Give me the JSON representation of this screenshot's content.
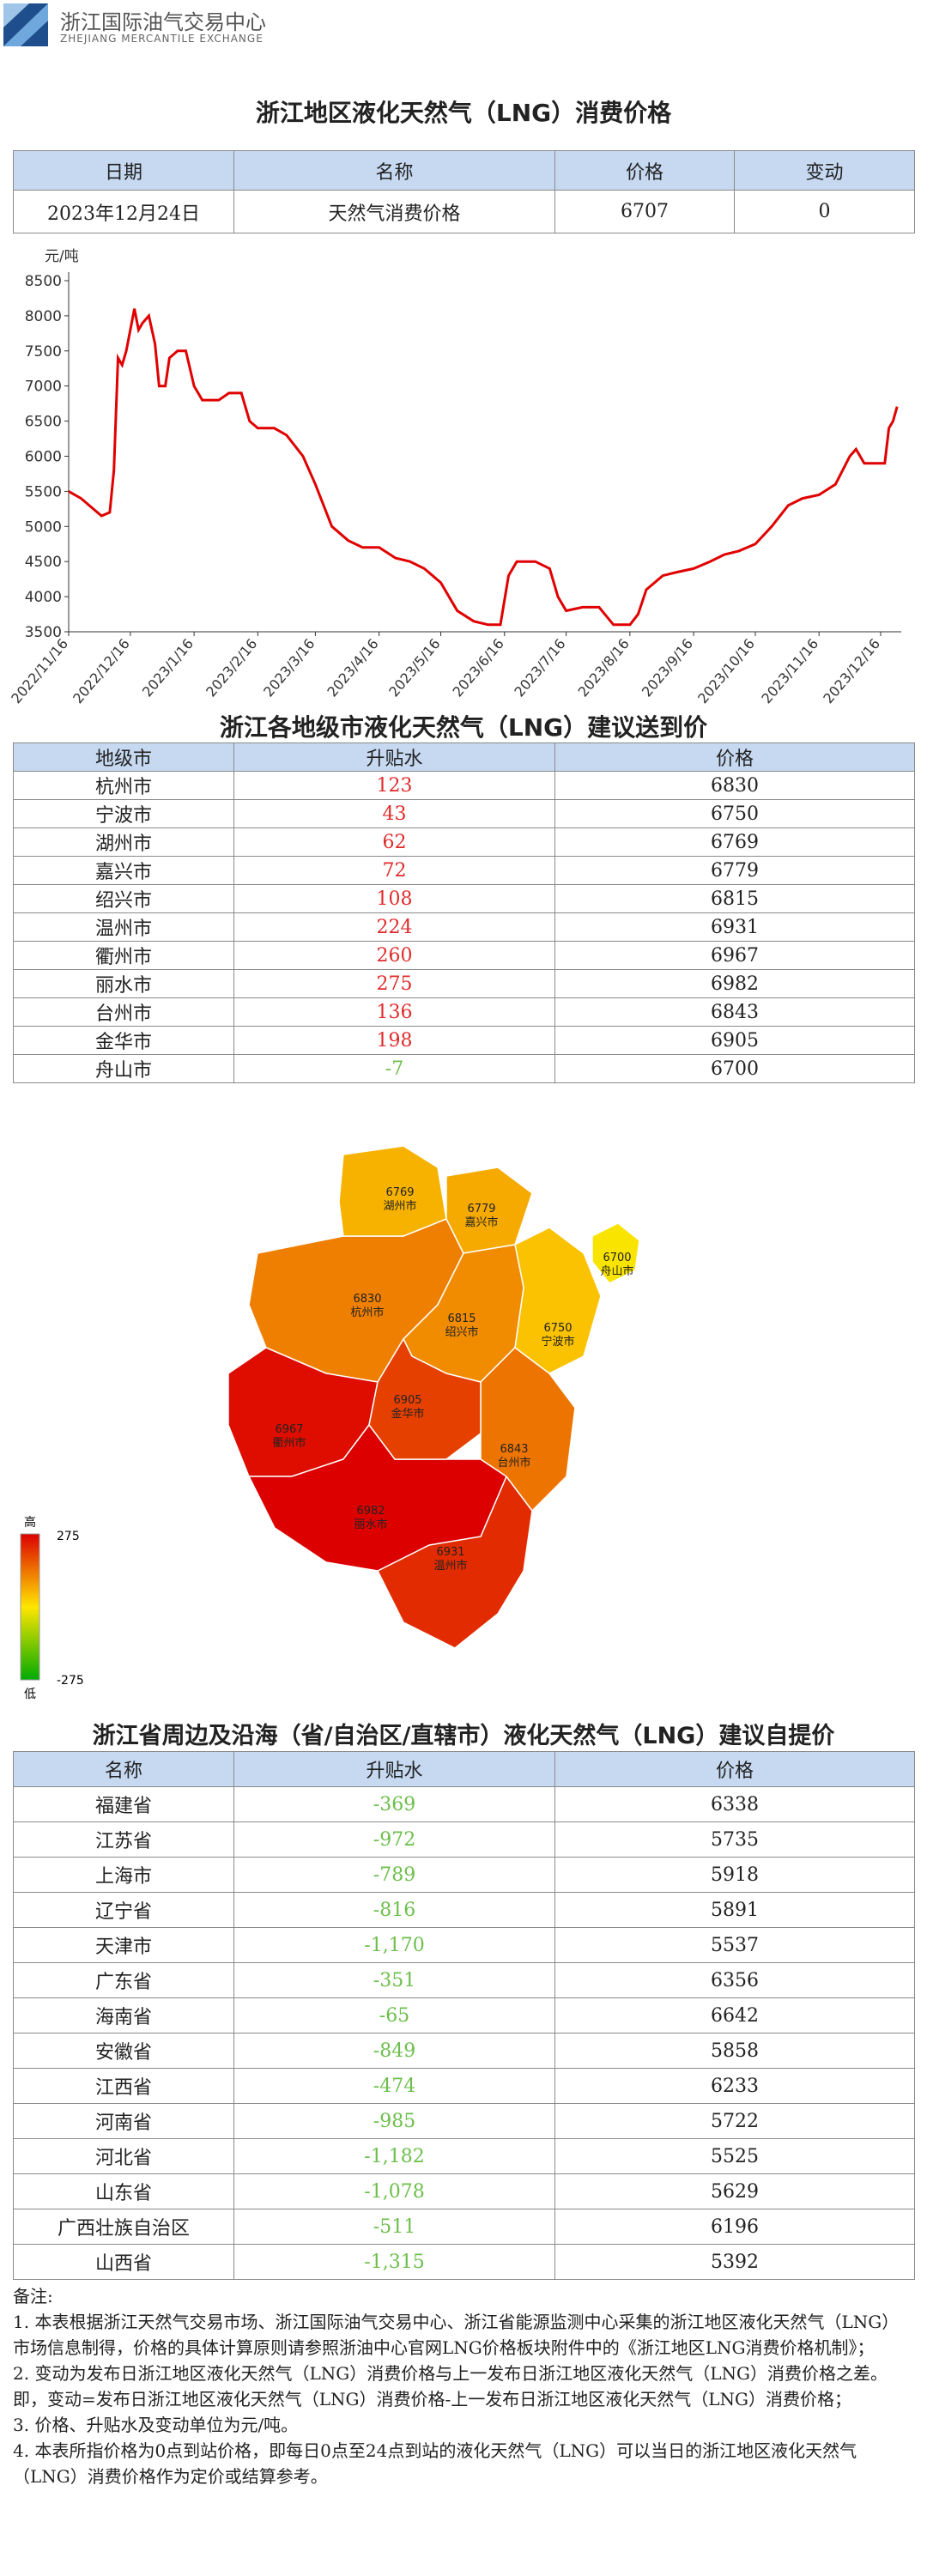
{
  "header": {
    "org": "浙江国际油气交易中心",
    "org_en": "ZHEJIANG MERCANTILE EXCHANGE"
  },
  "title1": "浙江地区液化天然气（LNG）消费价格",
  "table1": {
    "columns": [
      "日期",
      "名称",
      "价格",
      "变动"
    ],
    "rows": [
      [
        "2023年12月24日",
        "天然气消费价格",
        "6707",
        "0"
      ]
    ]
  },
  "chart_data": {
    "type": "line",
    "y_label": "元/吨",
    "x": [
      "2022/11/16",
      "2022/11/22",
      "2022/11/28",
      "2022/12/2",
      "2022/12/6",
      "2022/12/8",
      "2022/12/10",
      "2022/12/12",
      "2022/12/14",
      "2022/12/18",
      "2022/12/20",
      "2022/12/22",
      "2022/12/25",
      "2022/12/28",
      "2022/12/30",
      "2023/1/2",
      "2023/1/4",
      "2023/1/8",
      "2023/1/12",
      "2023/1/16",
      "2023/1/20",
      "2023/1/28",
      "2023/2/2",
      "2023/2/8",
      "2023/2/12",
      "2023/2/16",
      "2023/2/24",
      "2023/3/2",
      "2023/3/10",
      "2023/3/16",
      "2023/3/24",
      "2023/4/1",
      "2023/4/8",
      "2023/4/16",
      "2023/4/24",
      "2023/5/1",
      "2023/5/8",
      "2023/5/16",
      "2023/5/24",
      "2023/6/1",
      "2023/6/8",
      "2023/6/14",
      "2023/6/18",
      "2023/6/22",
      "2023/7/1",
      "2023/7/8",
      "2023/7/12",
      "2023/7/16",
      "2023/7/24",
      "2023/8/1",
      "2023/8/8",
      "2023/8/16",
      "2023/8/20",
      "2023/8/24",
      "2023/9/1",
      "2023/9/8",
      "2023/9/16",
      "2023/9/24",
      "2023/10/1",
      "2023/10/8",
      "2023/10/16",
      "2023/10/24",
      "2023/11/1",
      "2023/11/8",
      "2023/11/16",
      "2023/11/24",
      "2023/12/1",
      "2023/12/4",
      "2023/12/8",
      "2023/12/14",
      "2023/12/18",
      "2023/12/20",
      "2023/12/22",
      "2023/12/24"
    ],
    "series": [
      {
        "name": "天然气消费价格",
        "color": "#e00000",
        "values": [
          5500,
          5400,
          5250,
          5150,
          5200,
          5800,
          7400,
          7300,
          7500,
          8100,
          7800,
          7900,
          8000,
          7600,
          7000,
          7000,
          7400,
          7500,
          7500,
          7000,
          6800,
          6800,
          6900,
          6900,
          6500,
          6400,
          6400,
          6300,
          6000,
          5600,
          5000,
          4800,
          4700,
          4700,
          4550,
          4500,
          4400,
          4200,
          3800,
          3650,
          3600,
          3600,
          4300,
          4500,
          4500,
          4400,
          4000,
          3800,
          3850,
          3850,
          3600,
          3600,
          3750,
          4100,
          4300,
          4350,
          4400,
          4500,
          4600,
          4650,
          4750,
          5000,
          5300,
          5400,
          5450,
          5600,
          6000,
          6100,
          5900,
          5900,
          5900,
          6400,
          6500,
          6707
        ]
      }
    ],
    "xlim": [
      "2022/11/16",
      "2023/12/26"
    ],
    "xticks": [
      "2022/11/16",
      "2022/12/16",
      "2023/1/16",
      "2023/2/16",
      "2023/3/16",
      "2023/4/16",
      "2023/5/16",
      "2023/6/16",
      "2023/7/16",
      "2023/8/16",
      "2023/9/16",
      "2023/10/16",
      "2023/11/16",
      "2023/12/16"
    ],
    "ylim": [
      3500,
      8500
    ],
    "yticks": [
      3500,
      4000,
      4500,
      5000,
      5500,
      6000,
      6500,
      7000,
      7500,
      8000,
      8500
    ],
    "grid": false
  },
  "title2": "浙江各地级市液化天然气（LNG）建议送到价",
  "table2": {
    "columns": [
      "地级市",
      "升贴水",
      "价格"
    ],
    "rows": [
      [
        "杭州市",
        "123",
        "6830"
      ],
      [
        "宁波市",
        "43",
        "6750"
      ],
      [
        "湖州市",
        "62",
        "6769"
      ],
      [
        "嘉兴市",
        "72",
        "6779"
      ],
      [
        "绍兴市",
        "108",
        "6815"
      ],
      [
        "温州市",
        "224",
        "6931"
      ],
      [
        "衢州市",
        "260",
        "6967"
      ],
      [
        "丽水市",
        "275",
        "6982"
      ],
      [
        "台州市",
        "136",
        "6843"
      ],
      [
        "金华市",
        "198",
        "6905"
      ],
      [
        "舟山市",
        "-7",
        "6700"
      ]
    ]
  },
  "map": {
    "legend_high": "高",
    "legend_low": "低",
    "legend_max": 275,
    "legend_min": -275
  },
  "title3": "浙江省周边及沿海（省/自治区/直辖市）液化天然气（LNG）建议自提价",
  "table3": {
    "columns": [
      "名称",
      "升贴水",
      "价格"
    ],
    "rows": [
      [
        "福建省",
        "-369",
        "6338"
      ],
      [
        "江苏省",
        "-972",
        "5735"
      ],
      [
        "上海市",
        "-789",
        "5918"
      ],
      [
        "辽宁省",
        "-816",
        "5891"
      ],
      [
        "天津市",
        "-1,170",
        "5537"
      ],
      [
        "广东省",
        "-351",
        "6356"
      ],
      [
        "海南省",
        "-65",
        "6642"
      ],
      [
        "安徽省",
        "-849",
        "5858"
      ],
      [
        "江西省",
        "-474",
        "6233"
      ],
      [
        "河南省",
        "-985",
        "5722"
      ],
      [
        "河北省",
        "-1,182",
        "5525"
      ],
      [
        "山东省",
        "-1,078",
        "5629"
      ],
      [
        "广西壮族自治区",
        "-511",
        "6196"
      ],
      [
        "山西省",
        "-1,315",
        "5392"
      ]
    ]
  },
  "notes": {
    "heading": "备注:",
    "items": [
      "1. 本表根据浙江天然气交易市场、浙江国际油气交易中心、浙江省能源监测中心采集的浙江地区液化天然气（LNG）市场信息制得，价格的具体计算原则请参照浙油中心官网LNG价格板块附件中的《浙江地区LNG消费价格机制》；",
      "2. 变动为发布日浙江地区液化天然气（LNG）消费价格与上一发布日浙江地区液化天然气（LNG）消费价格之差。即，变动=发布日浙江地区液化天然气（LNG）消费价格-上一发布日浙江地区液化天然气（LNG）消费价格；",
      "3. 价格、升贴水及变动单位为元/吨。",
      "4. 本表所指价格为0点到站价格，即每日0点至24点到站的液化天然气（LNG）可以当日的浙江地区液化天然气（LNG）消费价格作为定价或结算参考。"
    ]
  }
}
